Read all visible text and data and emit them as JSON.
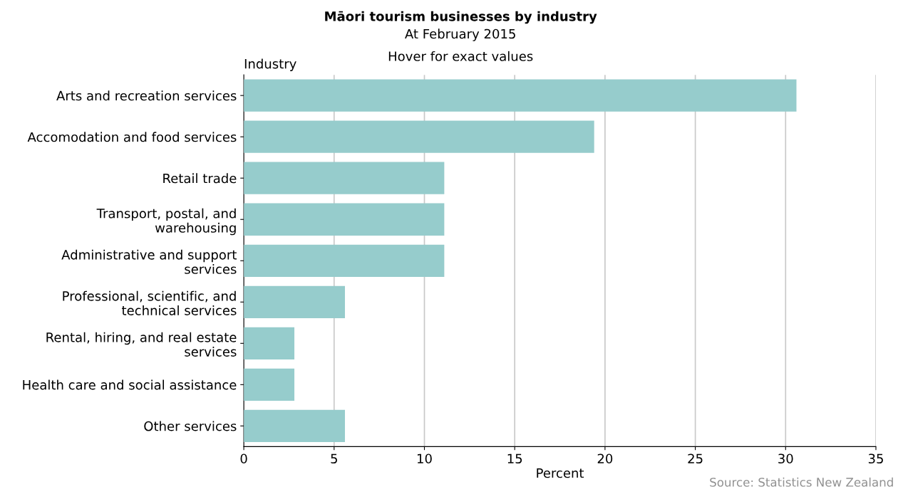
{
  "chart_data": {
    "type": "bar",
    "orientation": "horizontal",
    "title": "Māori tourism businesses by industry",
    "subtitle": "At February 2015",
    "ylabel": "Industry",
    "xlabel": "Percent",
    "categories": [
      "Arts and recreation services",
      "Accomodation and food services",
      "Retail trade",
      "Transport, postal, and\nwarehousing",
      "Administrative and support\nservices",
      "Professional, scientific, and\ntechnical services",
      "Rental, hiring, and real estate\nservices",
      "Health care and social assistance",
      "Other services"
    ],
    "values": [
      30.6,
      19.4,
      11.1,
      11.1,
      11.1,
      5.6,
      2.8,
      2.8,
      5.6
    ],
    "color": "#96cccc",
    "xlim": [
      0,
      35
    ],
    "xticks": [
      0,
      5,
      10,
      15,
      20,
      25,
      30,
      35
    ],
    "grid": "x",
    "annotations": [
      "Hover for exact values",
      "Source: Statistics New Zealand"
    ]
  }
}
